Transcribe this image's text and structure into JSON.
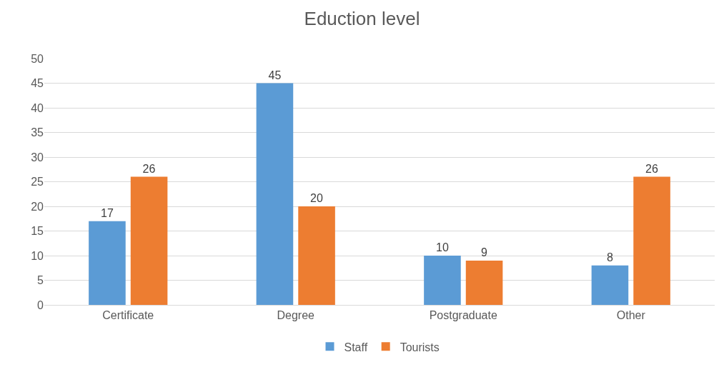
{
  "chart_data": {
    "type": "bar",
    "title": "Eduction level",
    "categories": [
      "Certificate",
      "Degree",
      "Postgraduate",
      "Other"
    ],
    "series": [
      {
        "name": "Staff",
        "color": "#5b9bd5",
        "values": [
          17,
          45,
          10,
          8
        ]
      },
      {
        "name": "Tourists",
        "color": "#ed7d31",
        "values": [
          26,
          20,
          9,
          26
        ]
      }
    ],
    "ylim": [
      0,
      50
    ],
    "yticks": [
      0,
      5,
      10,
      15,
      20,
      25,
      30,
      35,
      40,
      45,
      50
    ],
    "grid": "y",
    "legend": "bottom",
    "data_labels": true
  }
}
